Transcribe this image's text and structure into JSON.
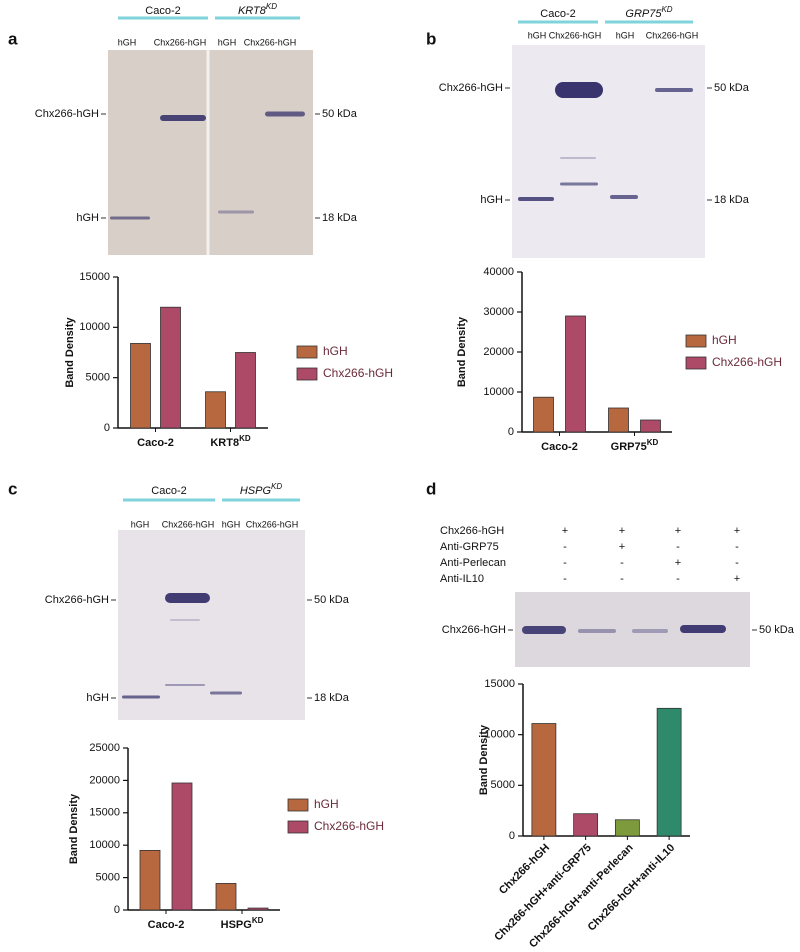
{
  "chart_data": [
    {
      "type": "bar",
      "y_label": "Band Density",
      "categories": [
        {
          "text": "Caco-2"
        },
        {
          "text": "KRT8",
          "sup": "KD"
        }
      ],
      "series": [
        {
          "name": "hGH",
          "color": "#b8683f",
          "values": [
            8400,
            3600
          ]
        },
        {
          "name": "Chx266-hGH",
          "color": "#ad4a68",
          "values": [
            12000,
            7500
          ]
        }
      ],
      "ylim": [
        0,
        15000
      ],
      "yticks": [
        0,
        5000,
        10000,
        15000
      ]
    },
    {
      "type": "bar",
      "y_label": "Band Density",
      "categories": [
        {
          "text": "Caco-2"
        },
        {
          "text": "GRP75",
          "sup": "KD"
        }
      ],
      "series": [
        {
          "name": "hGH",
          "color": "#b8683f",
          "values": [
            8700,
            6000
          ]
        },
        {
          "name": "Chx266-hGH",
          "color": "#ad4a68",
          "values": [
            29000,
            3000
          ]
        }
      ],
      "ylim": [
        0,
        40000
      ],
      "yticks": [
        0,
        10000,
        20000,
        30000,
        40000
      ]
    },
    {
      "type": "bar",
      "y_label": "Band Density",
      "categories": [
        {
          "text": "Caco-2"
        },
        {
          "text": "HSPG",
          "sup": "KD"
        }
      ],
      "series": [
        {
          "name": "hGH",
          "color": "#b8683f",
          "values": [
            9200,
            4100
          ]
        },
        {
          "name": "Chx266-hGH",
          "color": "#ad4a68",
          "values": [
            19600,
            300
          ]
        }
      ],
      "ylim": [
        0,
        25000
      ],
      "yticks": [
        0,
        5000,
        10000,
        15000,
        20000,
        25000
      ]
    },
    {
      "type": "bar",
      "y_label": "Band Density",
      "categories": [
        {
          "text": "Chx266-hGH"
        },
        {
          "text": "Chx266-hGH+anti-GRP75"
        },
        {
          "text": "Chx266-hGH+anti-Perlecan"
        },
        {
          "text": "Chx266-hGH+anti-IL10"
        }
      ],
      "values": [
        11100,
        2200,
        1600,
        12600
      ],
      "colors": [
        "#b8683f",
        "#ad4a68",
        "#7e9b3c",
        "#2f8a6c"
      ],
      "ylim": [
        0,
        15000
      ],
      "yticks": [
        0,
        5000,
        10000,
        15000
      ]
    }
  ],
  "blots": [
    {
      "letter": "a",
      "groups": [
        {
          "text": "Caco-2"
        },
        {
          "text": "KRT8",
          "sup": "KD"
        }
      ],
      "lanes": [
        "hGH",
        "Chx266-hGH",
        "hGH",
        "Chx266-hGH"
      ],
      "left_labels": [
        "Chx266-hGH",
        "hGH"
      ],
      "right_labels": [
        "50 kDa",
        "18 kDa"
      ]
    },
    {
      "letter": "b",
      "groups": [
        {
          "text": "Caco-2"
        },
        {
          "text": "GRP75",
          "sup": "KD"
        }
      ],
      "lanes": [
        "hGH",
        "Chx266-hGH",
        "hGH",
        "Chx266-hGH"
      ],
      "left_labels": [
        "Chx266-hGH",
        "hGH"
      ],
      "right_labels": [
        "50 kDa",
        "18 kDa"
      ]
    },
    {
      "letter": "c",
      "groups": [
        {
          "text": "Caco-2"
        },
        {
          "text": "HSPG",
          "sup": "KD"
        }
      ],
      "lanes": [
        "hGH",
        "Chx266-hGH",
        "hGH",
        "Chx266-hGH"
      ],
      "left_labels": [
        "Chx266-hGH",
        "hGH"
      ],
      "right_labels": [
        "50 kDa",
        "18 kDa"
      ]
    },
    {
      "letter": "d",
      "treatments": [
        {
          "name": "Chx266-hGH",
          "signs": [
            "+",
            "+",
            "+",
            "+"
          ]
        },
        {
          "name": "Anti-GRP75",
          "signs": [
            "-",
            "+",
            "-",
            "-"
          ]
        },
        {
          "name": "Anti-Perlecan",
          "signs": [
            "-",
            "-",
            "+",
            "-"
          ]
        },
        {
          "name": "Anti-IL10",
          "signs": [
            "-",
            "-",
            "-",
            "+"
          ]
        }
      ],
      "left_labels": [
        "Chx266-hGH"
      ],
      "right_labels": [
        "50 kDa"
      ]
    }
  ]
}
